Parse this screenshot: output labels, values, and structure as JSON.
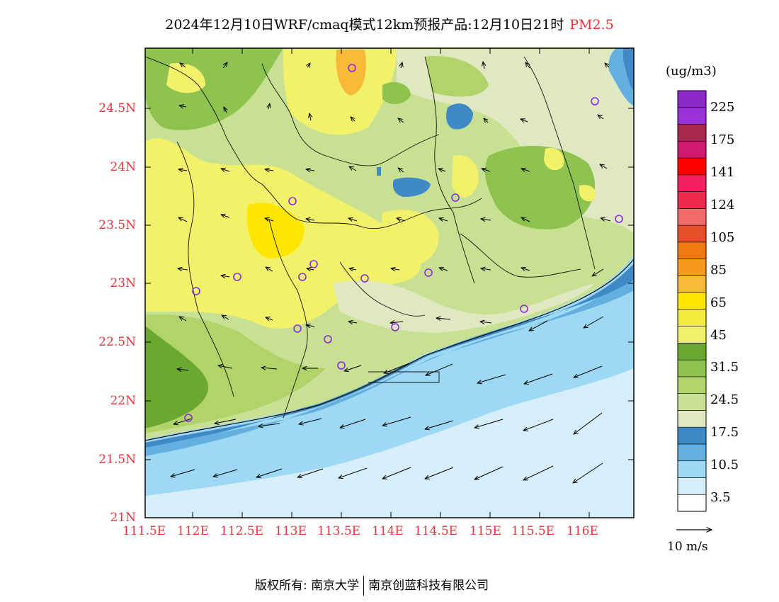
{
  "title": {
    "main": "2024年12月10日WRF/cmaq模式12km预报产品:12月10日21时",
    "pollutant": "PM2.5",
    "pollutant_color": "#e8343a"
  },
  "map": {
    "lat_labels": [
      "24.5N",
      "24N",
      "23.5N",
      "23N",
      "22.5N",
      "22N",
      "21.5N",
      "21N"
    ],
    "lon_labels": [
      "111.5E",
      "112E",
      "112.5E",
      "113E",
      "113.5E",
      "114E",
      "114.5E",
      "115E",
      "115.5E",
      "116E"
    ],
    "axis_label_color": "#e8343a",
    "sea_color": "#d6eefa",
    "station_marker_color": "#8a2be2",
    "wind_arrow_color": "#000000"
  },
  "colorbar": {
    "unit": "(ug/m3)",
    "colors_bottom_to_top": [
      "#ffffff",
      "#d6eefa",
      "#9dd8f4",
      "#63b0e0",
      "#3f8ac6",
      "#dfe8c0",
      "#c8e092",
      "#b0d46a",
      "#8fc34f",
      "#6aa830",
      "#f2f26a",
      "#f5ec40",
      "#ffe600",
      "#f8b838",
      "#f79a1c",
      "#f07a10",
      "#e84e28",
      "#f46a6a",
      "#f0284e",
      "#f81e62",
      "#ff0000",
      "#d01870",
      "#a8284e",
      "#9b30d8",
      "#8a28c8"
    ],
    "labels": [
      "3.5",
      "10.5",
      "17.5",
      "24.5",
      "31.5",
      "45",
      "65",
      "85",
      "105",
      "124",
      "141",
      "175",
      "225"
    ]
  },
  "wind_legend": {
    "label": "10 m/s"
  },
  "footer": {
    "copyright": "版权所有: 南京大学",
    "company": "南京创蓝科技有限公司"
  }
}
